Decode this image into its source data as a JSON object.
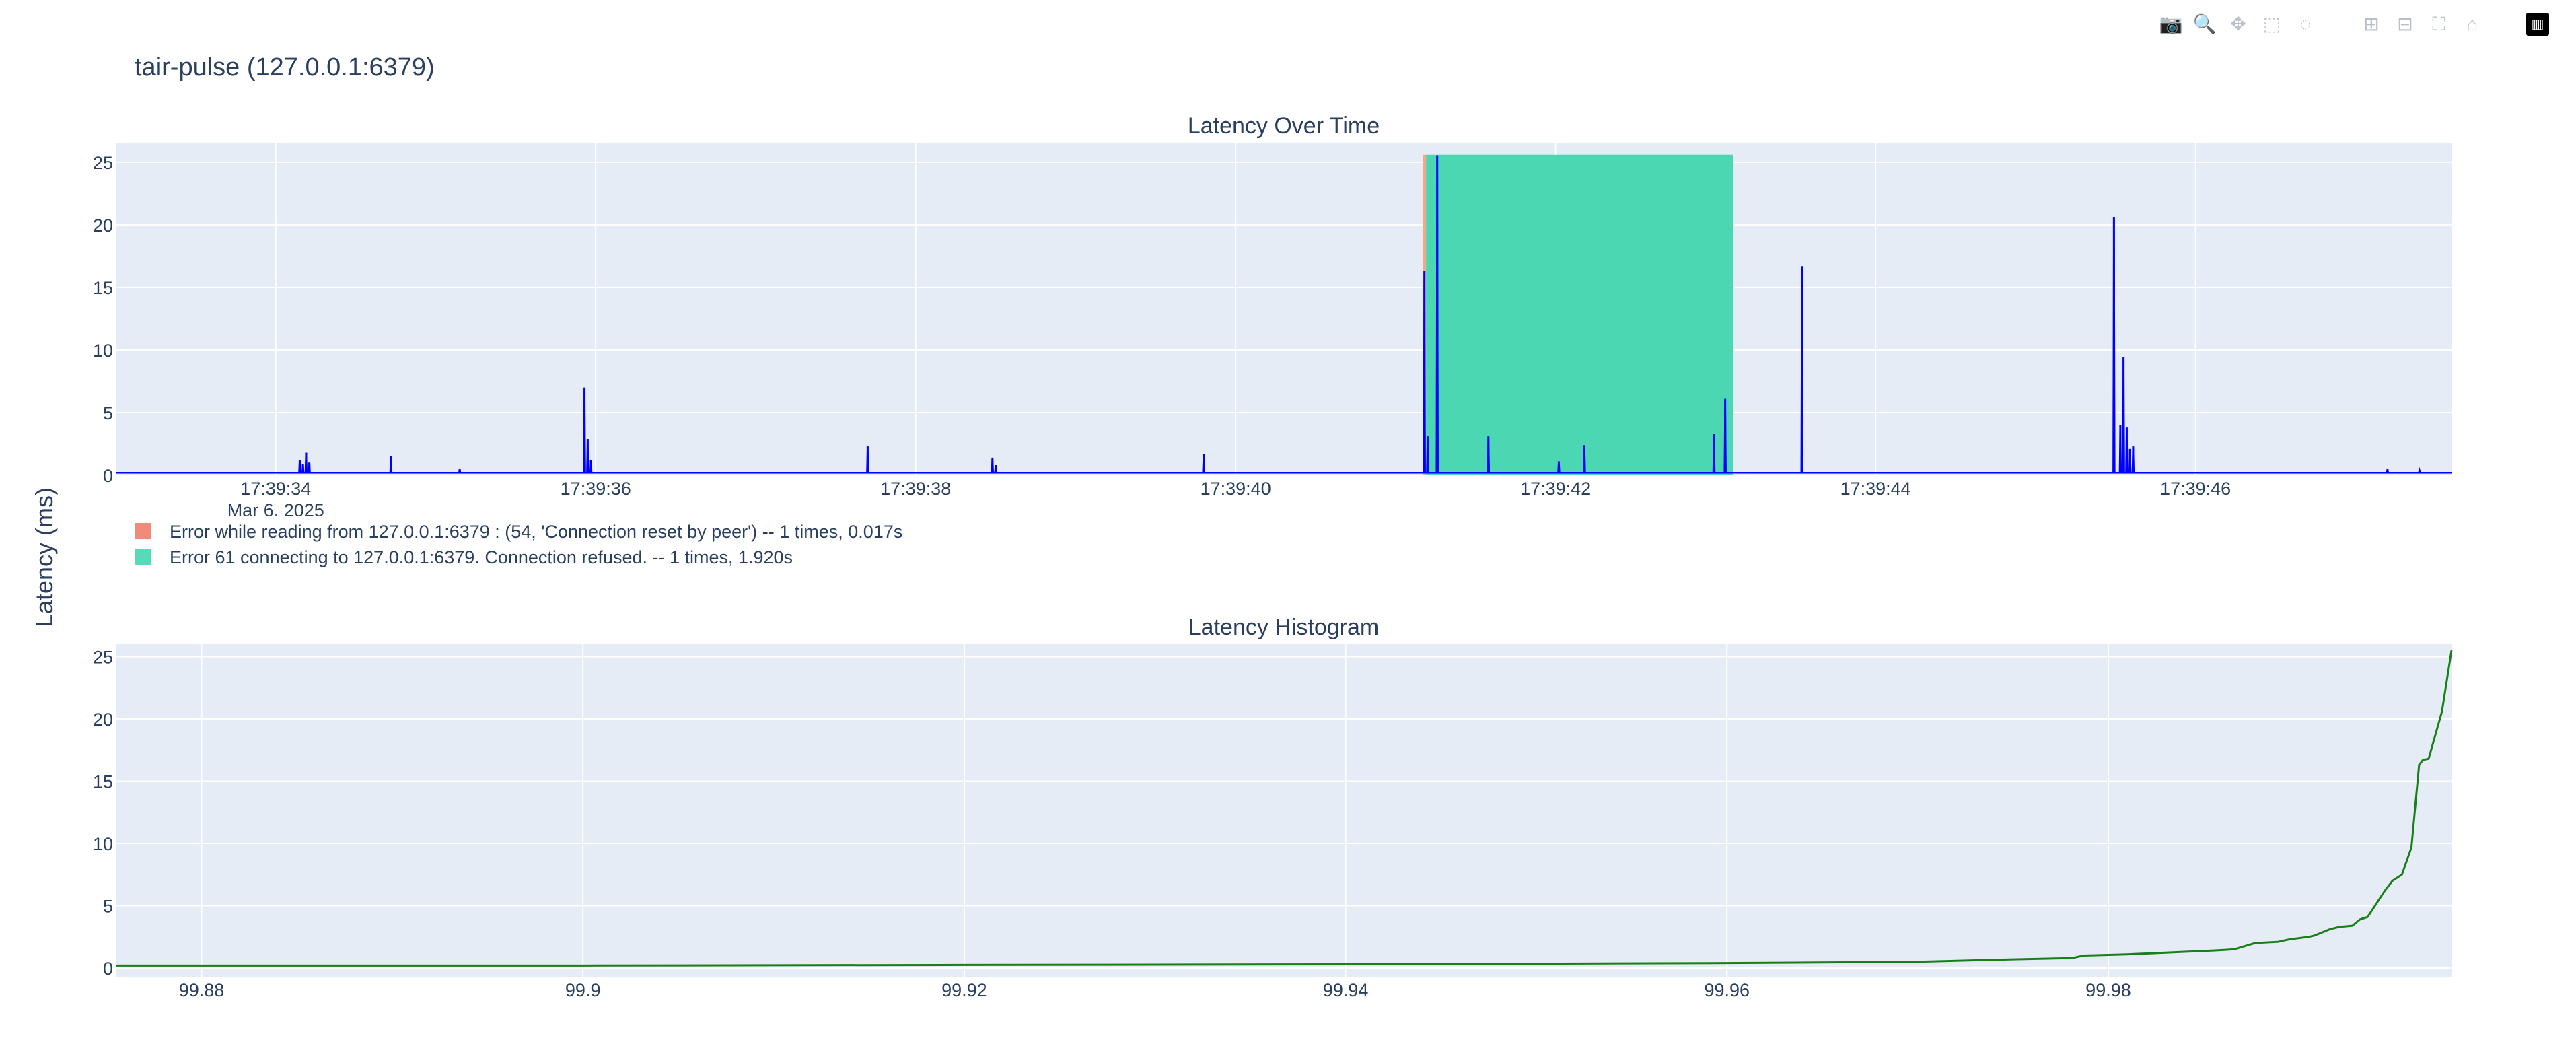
{
  "page": {
    "title": "tair-pulse (127.0.0.1:6379)"
  },
  "modebar": {
    "buttons": [
      {
        "name": "camera-icon",
        "glyph": "📷"
      },
      {
        "name": "zoom-icon",
        "glyph": "🔍",
        "active": true
      },
      {
        "name": "pan-icon",
        "glyph": "✥"
      },
      {
        "name": "box-select-icon",
        "glyph": "⬚"
      },
      {
        "name": "lasso-select-icon",
        "glyph": "◌"
      },
      {
        "name": "zoom-in-icon",
        "glyph": "⊞"
      },
      {
        "name": "zoom-out-icon",
        "glyph": "⊟"
      },
      {
        "name": "autoscale-icon",
        "glyph": "⛶"
      },
      {
        "name": "reset-axes-icon",
        "glyph": "⌂"
      },
      {
        "name": "plotly-logo-icon",
        "glyph": "▥",
        "logo": true
      }
    ]
  },
  "shared_ylabel": "Latency (ms)",
  "chart_data": [
    {
      "type": "line",
      "title": "Latency Over Time",
      "ylabel": "Latency (ms)",
      "ylim": [
        0,
        26.5
      ],
      "xlim": [
        "17:39:33.0",
        "17:39:47.6"
      ],
      "xticks": [
        "17:39:34",
        "17:39:36",
        "17:39:38",
        "17:39:40",
        "17:39:42",
        "17:39:44",
        "17:39:46"
      ],
      "xtick_sublabel": "Mar 6, 2025",
      "yticks": [
        0,
        5,
        10,
        15,
        20,
        25
      ],
      "grid": true,
      "line_color": "#0000ff",
      "baseline": 0.2,
      "spikes": [
        {
          "t": "17:39:34.15",
          "v": 1.2
        },
        {
          "t": "17:39:34.17",
          "v": 0.9
        },
        {
          "t": "17:39:34.19",
          "v": 1.8
        },
        {
          "t": "17:39:34.21",
          "v": 1.0
        },
        {
          "t": "17:39:34.72",
          "v": 1.5
        },
        {
          "t": "17:39:35.15",
          "v": 0.5
        },
        {
          "t": "17:39:35.93",
          "v": 7.0
        },
        {
          "t": "17:39:35.95",
          "v": 2.9
        },
        {
          "t": "17:39:35.97",
          "v": 1.2
        },
        {
          "t": "17:39:37.70",
          "v": 2.3
        },
        {
          "t": "17:39:38.48",
          "v": 1.4
        },
        {
          "t": "17:39:38.50",
          "v": 0.8
        },
        {
          "t": "17:39:39.80",
          "v": 1.7
        },
        {
          "t": "17:39:41.18",
          "v": 16.3
        },
        {
          "t": "17:39:41.20",
          "v": 3.1
        },
        {
          "t": "17:39:41.26",
          "v": 25.5
        },
        {
          "t": "17:39:41.58",
          "v": 3.1
        },
        {
          "t": "17:39:42.02",
          "v": 1.1
        },
        {
          "t": "17:39:42.18",
          "v": 2.4
        },
        {
          "t": "17:39:42.99",
          "v": 3.3
        },
        {
          "t": "17:39:43.06",
          "v": 6.1
        },
        {
          "t": "17:39:43.54",
          "v": 16.7
        },
        {
          "t": "17:39:45.49",
          "v": 20.6
        },
        {
          "t": "17:39:45.53",
          "v": 4.0
        },
        {
          "t": "17:39:45.55",
          "v": 9.4
        },
        {
          "t": "17:39:45.57",
          "v": 3.8
        },
        {
          "t": "17:39:45.59",
          "v": 2.1
        },
        {
          "t": "17:39:45.61",
          "v": 2.3
        },
        {
          "t": "17:39:47.20",
          "v": 0.5
        },
        {
          "t": "17:39:47.40",
          "v": 0.4
        }
      ],
      "error_regions": [
        {
          "start": "17:39:41.17",
          "end": "17:39:41.19",
          "color": "#f4a582",
          "label": "Error while reading from 127.0.0.1:6379 : (54, 'Connection reset by peer')  --  1 times, 0.017s",
          "legend_color": "#f08a79"
        },
        {
          "start": "17:39:41.19",
          "end": "17:39:43.11",
          "color": "#46d6b1",
          "label": "Error 61 connecting to 127.0.0.1:6379. Connection refused.  --  1 times, 1.920s",
          "legend_color": "#56dbb6"
        }
      ]
    },
    {
      "type": "line",
      "title": "Latency Histogram",
      "ylabel": "Latency (ms)",
      "xlim": [
        99.8755,
        99.998
      ],
      "ylim": [
        -0.7,
        26.0
      ],
      "xticks": [
        99.88,
        99.9,
        99.92,
        99.94,
        99.96,
        99.98
      ],
      "xtick_labels": [
        "99.88",
        "99.9",
        "99.92",
        "99.94",
        "99.96",
        "99.98"
      ],
      "yticks": [
        0,
        5,
        10,
        15,
        20,
        25
      ],
      "grid": true,
      "line_color": "#1a7f1a",
      "x": [
        99.8755,
        99.9,
        99.92,
        99.94,
        99.96,
        99.97,
        99.975,
        99.9781,
        99.9787,
        99.981,
        99.984,
        99.9855,
        99.9861,
        99.9866,
        99.9877,
        99.9889,
        99.9895,
        99.9905,
        99.9908,
        99.9916,
        99.9921,
        99.9928,
        99.9932,
        99.9936,
        99.9945,
        99.9949,
        99.9954,
        99.9959,
        99.9963,
        99.9965,
        99.9968,
        99.9975,
        99.998
      ],
      "y": [
        0.2,
        0.2,
        0.25,
        0.3,
        0.4,
        0.5,
        0.7,
        0.8,
        1.0,
        1.1,
        1.3,
        1.4,
        1.45,
        1.5,
        2.0,
        2.1,
        2.3,
        2.5,
        2.6,
        3.1,
        3.3,
        3.4,
        3.9,
        4.1,
        6.2,
        7.0,
        7.5,
        9.7,
        16.3,
        16.7,
        16.8,
        20.6,
        25.5
      ]
    }
  ]
}
